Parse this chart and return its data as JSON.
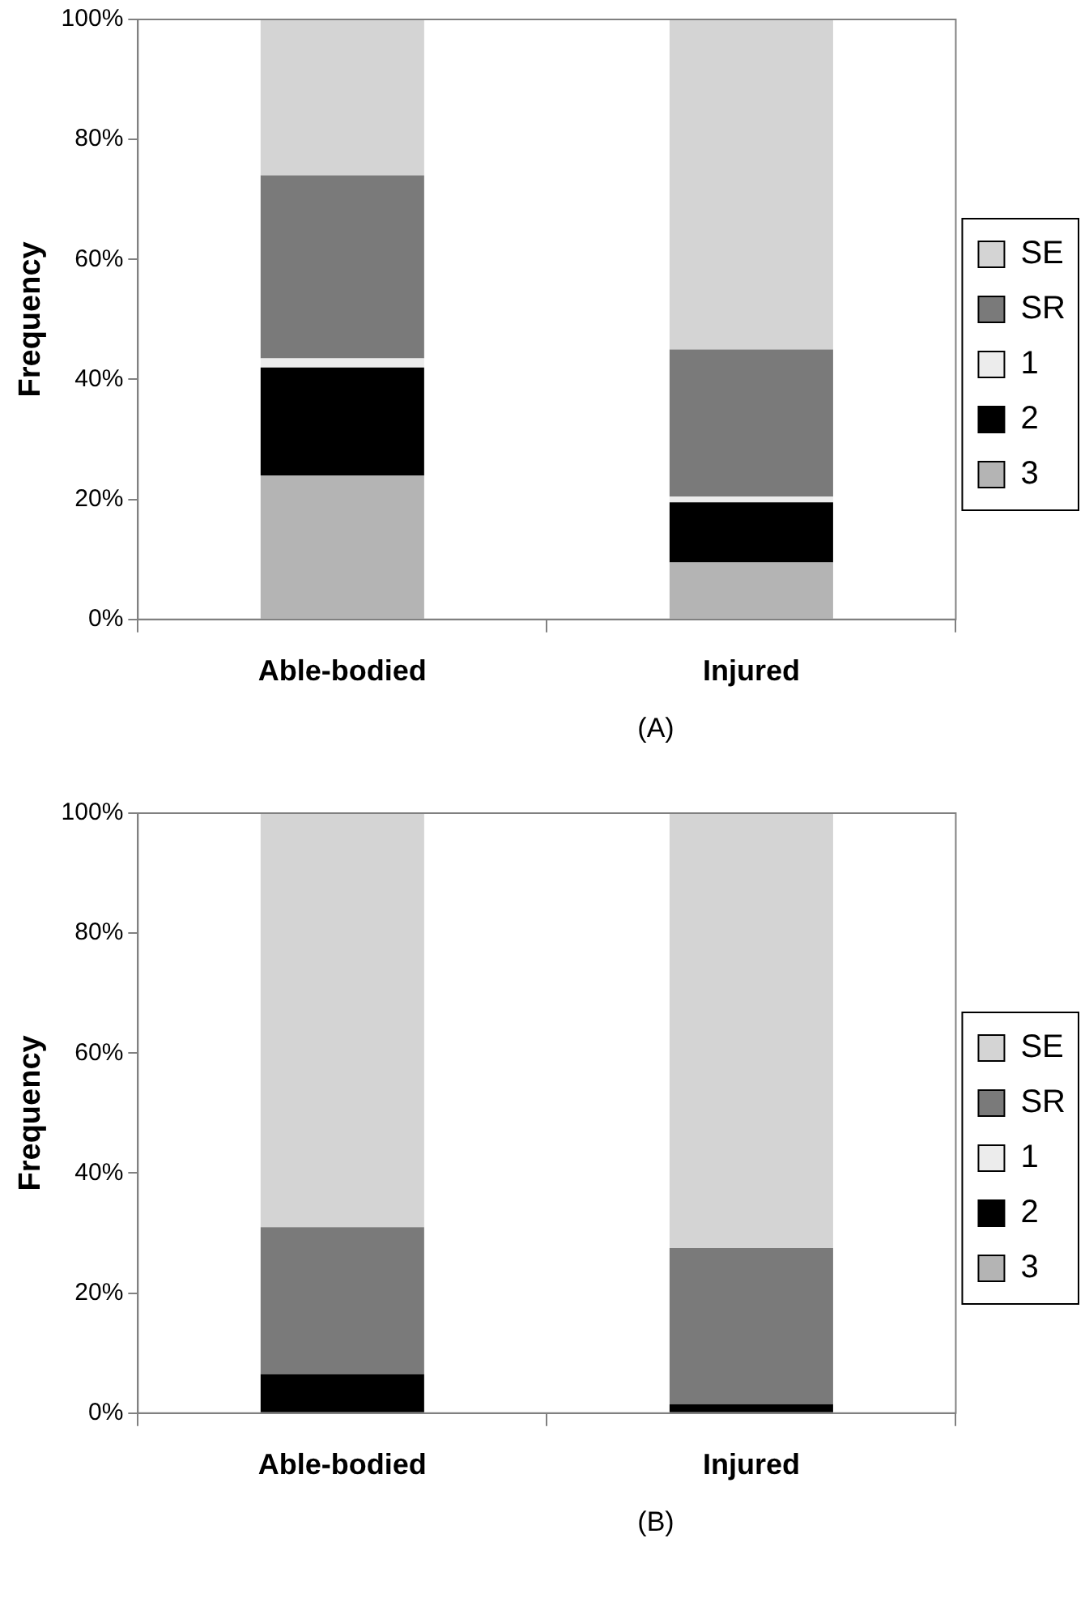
{
  "chart_data": [
    {
      "type": "bar",
      "stacked": true,
      "ylabel": "Frequency",
      "categories": [
        "Able-bodied",
        "Injured"
      ],
      "series": [
        {
          "name": "3",
          "color": "#b4b4b4",
          "values": [
            24,
            9.5
          ]
        },
        {
          "name": "2",
          "color": "#000000",
          "values": [
            18,
            10
          ]
        },
        {
          "name": "1",
          "color": "#ececec",
          "values": [
            1.5,
            1
          ]
        },
        {
          "name": "SR",
          "color": "#7a7a7a",
          "values": [
            30.5,
            24.5
          ]
        },
        {
          "name": "SE",
          "color": "#d4d4d4",
          "values": [
            26,
            55
          ]
        }
      ],
      "ylim": [
        0,
        100
      ],
      "yticks": [
        {
          "value": 0,
          "label": "0%"
        },
        {
          "value": 20,
          "label": "20%"
        },
        {
          "value": 40,
          "label": "40%"
        },
        {
          "value": 60,
          "label": "60%"
        },
        {
          "value": 80,
          "label": "80%"
        },
        {
          "value": 100,
          "label": "100%"
        }
      ],
      "grid": false,
      "legend": "right",
      "annotations": [
        "(A)"
      ]
    },
    {
      "type": "bar",
      "stacked": true,
      "ylabel": "Frequency",
      "categories": [
        "Able-bodied",
        "Injured"
      ],
      "series": [
        {
          "name": "3",
          "color": "#b4b4b4",
          "values": [
            0,
            0
          ]
        },
        {
          "name": "2",
          "color": "#000000",
          "values": [
            6.5,
            1.5
          ]
        },
        {
          "name": "1",
          "color": "#ececec",
          "values": [
            0,
            0
          ]
        },
        {
          "name": "SR",
          "color": "#7a7a7a",
          "values": [
            24.5,
            26
          ]
        },
        {
          "name": "SE",
          "color": "#d4d4d4",
          "values": [
            69,
            72.5
          ]
        }
      ],
      "ylim": [
        0,
        100
      ],
      "yticks": [
        {
          "value": 0,
          "label": "0%"
        },
        {
          "value": 20,
          "label": "20%"
        },
        {
          "value": 40,
          "label": "40%"
        },
        {
          "value": 60,
          "label": "60%"
        },
        {
          "value": 80,
          "label": "80%"
        },
        {
          "value": 100,
          "label": "100%"
        }
      ],
      "grid": false,
      "legend": "right",
      "annotations": [
        "(B)"
      ]
    }
  ]
}
